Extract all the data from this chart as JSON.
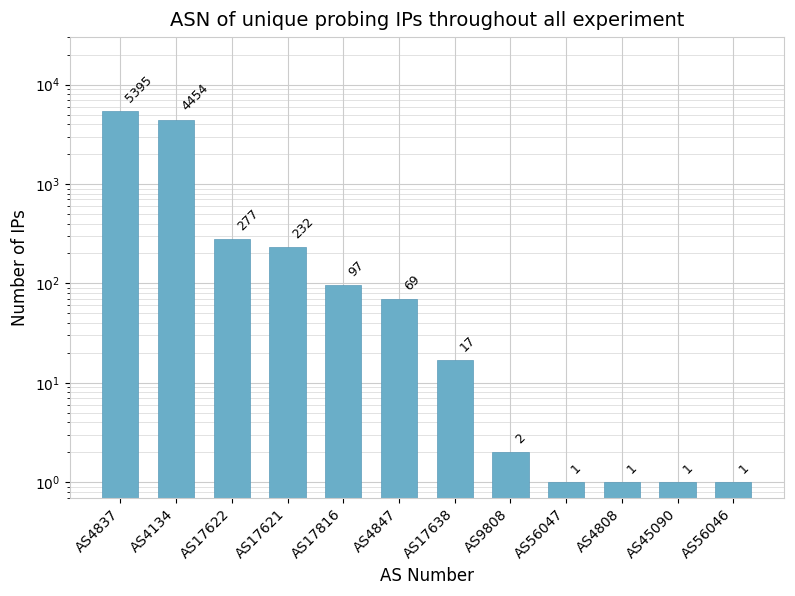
{
  "categories": [
    "AS4837",
    "AS4134",
    "AS17622",
    "AS17621",
    "AS17816",
    "AS4847",
    "AS17638",
    "AS9808",
    "AS56047",
    "AS4808",
    "AS45090",
    "AS56046"
  ],
  "values": [
    5395,
    4454,
    277,
    232,
    97,
    69,
    17,
    2,
    1,
    1,
    1,
    1
  ],
  "bar_color": "#6aaec8",
  "bar_edgecolor": "#5a9ab8",
  "title": "ASN of unique probing IPs throughout all experiment",
  "xlabel": "AS Number",
  "ylabel": "Number of IPs",
  "title_fontsize": 14,
  "label_fontsize": 12,
  "tick_fontsize": 10,
  "annotation_fontsize": 9,
  "background_color": "#ffffff",
  "grid_color": "#cccccc"
}
